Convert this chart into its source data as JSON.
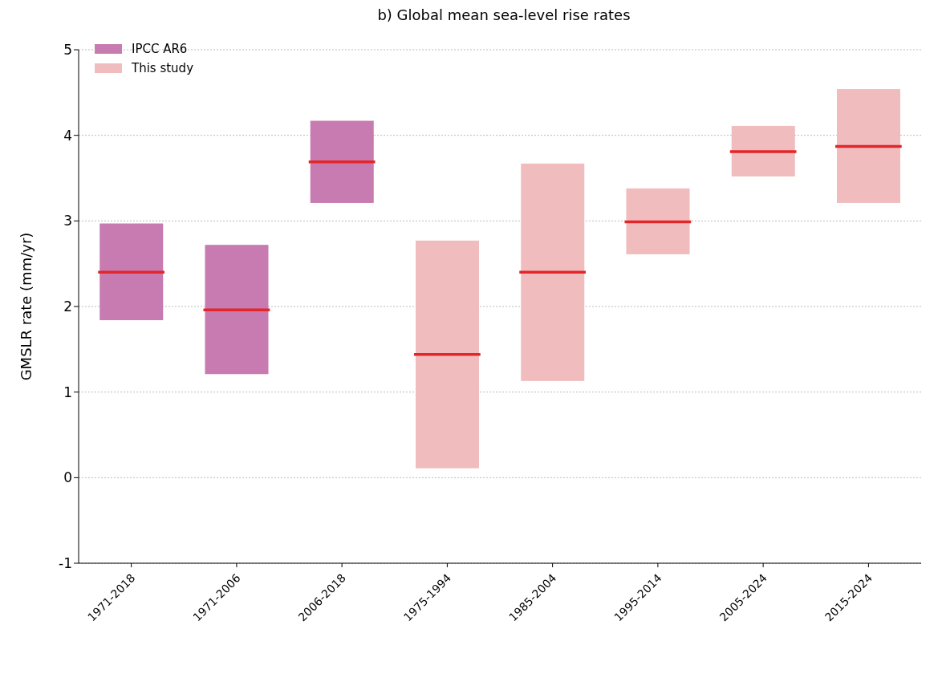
{
  "chart_data": {
    "type": "box",
    "title": "b) Global mean sea-level rise rates",
    "ylabel": "GMSLR rate (mm/yr)",
    "categories": [
      "1971-2018",
      "1971-2006",
      "2006-2018",
      "1975-1994",
      "1985-2004",
      "1995-2014",
      "2005-2024",
      "2015-2024"
    ],
    "series": [
      {
        "name": "IPCC AR6",
        "color": "#c77bb0",
        "boxes": [
          {
            "low": 1.84,
            "q1": 1.84,
            "median": 2.4,
            "q3": 2.97,
            "high": 2.97
          },
          {
            "low": 1.21,
            "q1": 1.21,
            "median": 1.96,
            "q3": 2.72,
            "high": 2.72
          },
          {
            "low": 3.21,
            "q1": 3.21,
            "median": 3.69,
            "q3": 4.17,
            "high": 4.17
          },
          null,
          null,
          null,
          null,
          null
        ]
      },
      {
        "name": "This study",
        "color": "#f0bcbe",
        "boxes": [
          null,
          null,
          null,
          {
            "low": 0.11,
            "q1": 0.11,
            "median": 1.44,
            "q3": 2.77,
            "high": 2.77
          },
          {
            "low": 1.13,
            "q1": 1.13,
            "median": 2.4,
            "q3": 3.67,
            "high": 3.67
          },
          {
            "low": 2.61,
            "q1": 2.61,
            "median": 2.99,
            "q3": 3.38,
            "high": 3.38
          },
          {
            "low": 3.52,
            "q1": 3.52,
            "median": 3.81,
            "q3": 4.11,
            "high": 4.11
          },
          {
            "low": 3.21,
            "q1": 3.21,
            "median": 3.87,
            "q3": 4.54,
            "high": 4.54
          }
        ]
      }
    ],
    "ylim": [
      -1,
      5
    ],
    "yticks": [
      -1,
      0,
      1,
      2,
      3,
      4,
      5
    ],
    "grid": "y",
    "legend": "top left"
  }
}
